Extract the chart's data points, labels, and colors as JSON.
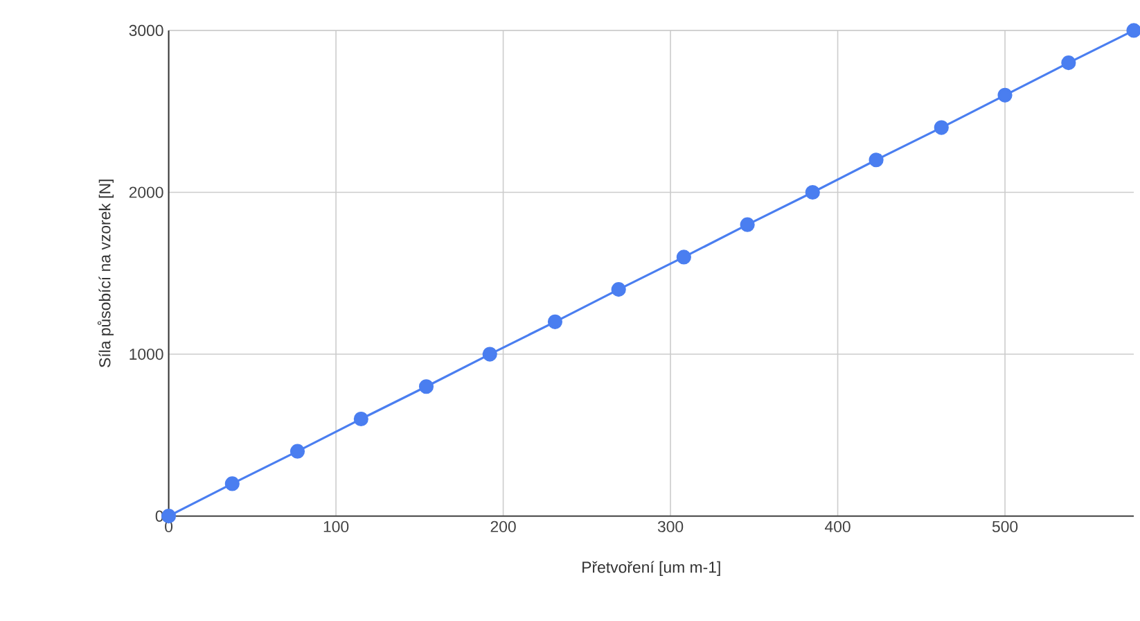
{
  "chart_data": {
    "type": "line",
    "xlabel": "Přetvoření [um m-1]",
    "ylabel": "Síla působící na vzorek [N]",
    "x": [
      0,
      38,
      77,
      115,
      154,
      192,
      231,
      269,
      308,
      346,
      385,
      423,
      462,
      500,
      538,
      577
    ],
    "series": [
      {
        "color": "#4a7ef0",
        "values": [
          0,
          200,
          400,
          600,
          800,
          1000,
          1200,
          1400,
          1600,
          1800,
          2000,
          2200,
          2400,
          2600,
          2800,
          3000
        ]
      }
    ],
    "xlim": [
      0,
      577
    ],
    "ylim": [
      0,
      3000
    ],
    "xticks": [
      0,
      100,
      200,
      300,
      400,
      500
    ],
    "yticks": [
      0,
      1000,
      2000,
      3000
    ],
    "grid": true,
    "marker": "circle",
    "line_style": "solid"
  }
}
